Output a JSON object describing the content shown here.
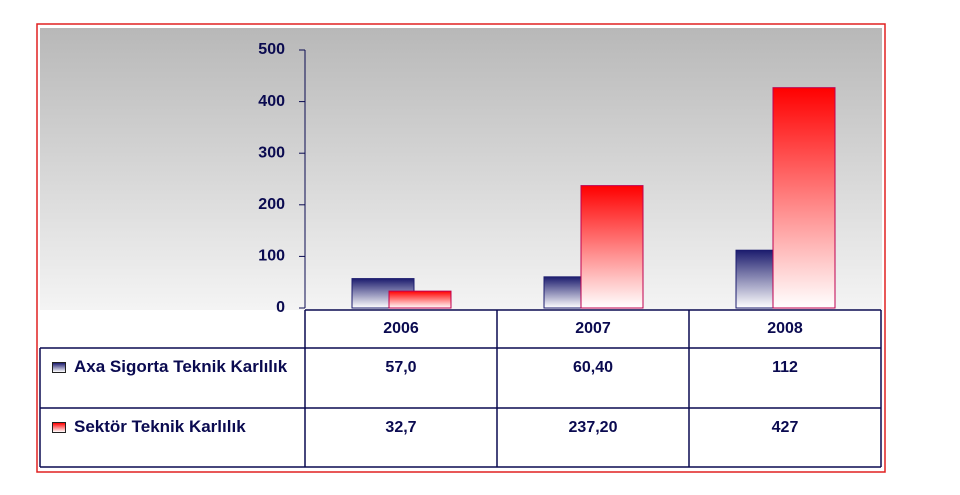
{
  "chart_data": {
    "type": "bar",
    "categories": [
      "2006",
      "2007",
      "2008"
    ],
    "series": [
      {
        "name": "Axa Sigorta Teknik Karlılık",
        "color": "#1c1c6e",
        "values": [
          57.0,
          60.4,
          112
        ],
        "value_labels": [
          "57,0",
          "60,40",
          "112"
        ]
      },
      {
        "name": "Sektör Teknik Karlılık",
        "color": "#ff0000",
        "values": [
          32.7,
          237.2,
          427
        ],
        "value_labels": [
          "32,7",
          "237,20",
          "427"
        ]
      }
    ],
    "ylim": [
      0,
      500
    ],
    "yticks": [
      0,
      100,
      200,
      300,
      400,
      500
    ]
  }
}
